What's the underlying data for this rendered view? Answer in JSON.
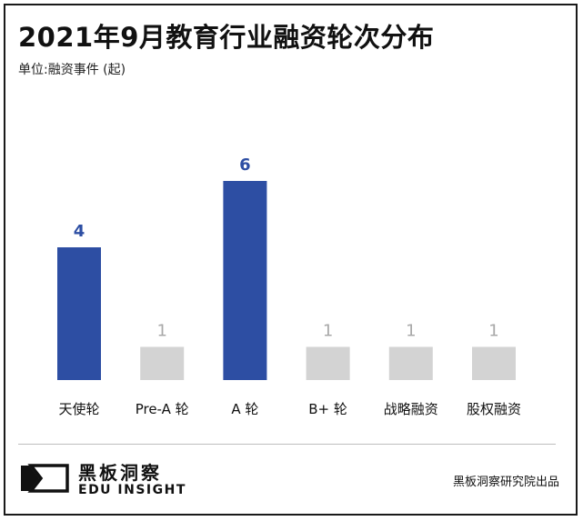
{
  "chart_data": {
    "type": "bar",
    "title": "2021年9月教育行业融资轮次分布",
    "subtitle": "单位:融资事件 (起)",
    "categories": [
      "天使轮",
      "Pre-A 轮",
      "A 轮",
      "B+ 轮",
      "战略融资",
      "股权融资"
    ],
    "values": [
      4,
      1,
      6,
      1,
      1,
      1
    ],
    "ylim": [
      0,
      6
    ],
    "grid": false,
    "legend": "none",
    "data_labels": true
  },
  "colors": {
    "highlight": "#2d4ea3",
    "muted_bar": "#d3d3d3",
    "highlight_label": "#2d4ea3",
    "muted_label": "#a8a8a8",
    "text": "#111111"
  },
  "highlighted_categories": [
    "天使轮",
    "A 轮"
  ],
  "footer": {
    "logo_cn": "黑板洞察",
    "logo_en": "EDU INSIGHT",
    "logo_icon": "edu-insight-logo-icon",
    "source": "黑板洞察研究院出品"
  }
}
